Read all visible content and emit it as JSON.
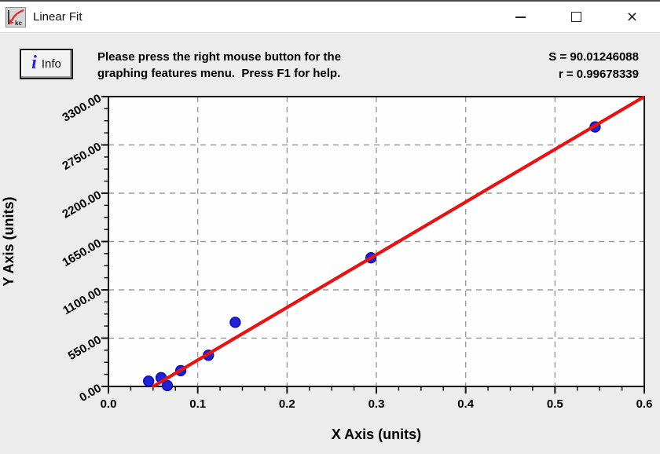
{
  "window": {
    "title": "Linear Fit",
    "icons": {
      "app": "red-curve-graph-icon",
      "minimize_glyph": "–",
      "maximize_glyph": "□",
      "close_glyph": "×"
    }
  },
  "toolbar": {
    "info_label": "Info",
    "info_icon_glyph": "i",
    "help_line1": "Please press the right mouse button for the",
    "help_line2": "graphing features menu.  Press F1 for help.",
    "stats": {
      "s": "S = 90.01246088",
      "r": "r = 0.99678339"
    }
  },
  "chart_data": {
    "type": "scatter",
    "title": "",
    "xlabel": "X Axis (units)",
    "ylabel": "Y Axis (units)",
    "xlim": [
      0,
      0.6
    ],
    "ylim": [
      0,
      3300
    ],
    "x_major_step": 0.1,
    "x_minor_step": 0.025,
    "y_major_step": 550,
    "y_minor_step": 137.5,
    "x_tick_labels": [
      "0.0",
      "0.1",
      "0.2",
      "0.3",
      "0.4",
      "0.5",
      "0.6"
    ],
    "y_tick_labels": [
      "0.00",
      "550.00",
      "1100.00",
      "1650.00",
      "2200.00",
      "2750.00",
      "3300.00"
    ],
    "grid": true,
    "grid_style": "dashed",
    "legend": "none",
    "points": [
      [
        0.045,
        60
      ],
      [
        0.059,
        100
      ],
      [
        0.066,
        10
      ],
      [
        0.081,
        180
      ],
      [
        0.112,
        355
      ],
      [
        0.142,
        730
      ],
      [
        0.294,
        1465
      ],
      [
        0.545,
        2955
      ]
    ],
    "fit_line": {
      "x1": 0.05,
      "y1": 0,
      "x2": 0.6,
      "y2": 3300
    },
    "colors": {
      "point": "#2121d6",
      "point_stroke": "#0b0bb0",
      "line": "#e81212",
      "grid": "#9b9b9b",
      "axis": "#141414",
      "plot_bg": "#fefefe",
      "text": "#000000"
    }
  }
}
